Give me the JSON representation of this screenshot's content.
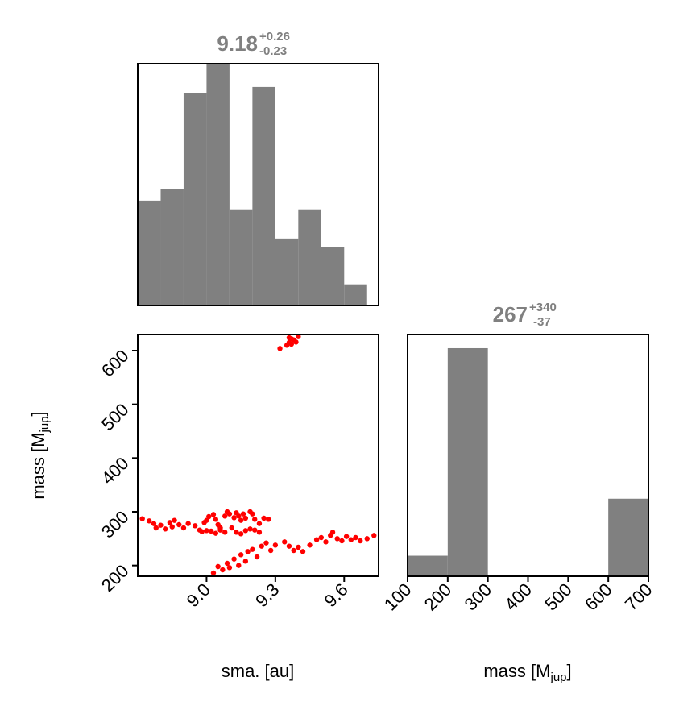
{
  "chart_data": [
    {
      "type": "histogram",
      "panel": "sma-marginal",
      "title": {
        "median": "9.18",
        "plus": "+0.26",
        "minus": "-0.23"
      },
      "color": "#808080",
      "xlim": [
        8.7,
        9.75
      ],
      "bins": [
        {
          "x0": 8.7,
          "x1": 8.8,
          "count": 36
        },
        {
          "x0": 8.8,
          "x1": 8.9,
          "count": 40
        },
        {
          "x0": 8.9,
          "x1": 9.0,
          "count": 73
        },
        {
          "x0": 9.0,
          "x1": 9.1,
          "count": 83
        },
        {
          "x0": 9.1,
          "x1": 9.2,
          "count": 33
        },
        {
          "x0": 9.2,
          "x1": 9.3,
          "count": 75
        },
        {
          "x0": 9.3,
          "x1": 9.4,
          "count": 23
        },
        {
          "x0": 9.4,
          "x1": 9.5,
          "count": 33
        },
        {
          "x0": 9.5,
          "x1": 9.6,
          "count": 20
        },
        {
          "x0": 9.6,
          "x1": 9.7,
          "count": 7
        }
      ],
      "ylim": [
        0,
        83
      ]
    },
    {
      "type": "scatter",
      "panel": "sma-mass-joint",
      "color": "#ff0000",
      "xlabel": "sma. [au]",
      "ylabel": {
        "base": "mass [M",
        "sub": "jup",
        "close": "]"
      },
      "xlim": [
        8.7,
        9.75
      ],
      "ylim": [
        180,
        630
      ],
      "xticks": [
        9.0,
        9.3,
        9.6
      ],
      "xtick_labels": [
        "9.0",
        "9.3",
        "9.6"
      ],
      "yticks": [
        200,
        300,
        400,
        500,
        600
      ],
      "ytick_labels": [
        "200",
        "300",
        "400",
        "500",
        "600"
      ],
      "points": [
        [
          9.32,
          604
        ],
        [
          9.35,
          610
        ],
        [
          9.36,
          615
        ],
        [
          9.37,
          612
        ],
        [
          9.38,
          620
        ],
        [
          9.39,
          616
        ],
        [
          9.36,
          624
        ],
        [
          9.4,
          626
        ],
        [
          9.37,
          622
        ],
        [
          8.72,
          287
        ],
        [
          8.75,
          283
        ],
        [
          8.77,
          278
        ],
        [
          8.78,
          270
        ],
        [
          8.8,
          275
        ],
        [
          8.82,
          268
        ],
        [
          8.84,
          280
        ],
        [
          8.85,
          272
        ],
        [
          8.86,
          284
        ],
        [
          8.88,
          276
        ],
        [
          8.9,
          270
        ],
        [
          8.92,
          278
        ],
        [
          8.95,
          274
        ],
        [
          8.97,
          266
        ],
        [
          8.99,
          280
        ],
        [
          9.0,
          284
        ],
        [
          9.01,
          291
        ],
        [
          9.03,
          295
        ],
        [
          9.04,
          286
        ],
        [
          9.05,
          276
        ],
        [
          9.06,
          270
        ],
        [
          9.08,
          292
        ],
        [
          9.09,
          300
        ],
        [
          9.1,
          296
        ],
        [
          9.12,
          289
        ],
        [
          9.13,
          298
        ],
        [
          9.14,
          292
        ],
        [
          9.15,
          284
        ],
        [
          9.16,
          296
        ],
        [
          9.17,
          288
        ],
        [
          9.19,
          300
        ],
        [
          9.2,
          296
        ],
        [
          9.21,
          286
        ],
        [
          9.23,
          278
        ],
        [
          9.25,
          288
        ],
        [
          9.27,
          286
        ],
        [
          8.98,
          263
        ],
        [
          9.0,
          265
        ],
        [
          9.02,
          264
        ],
        [
          9.04,
          260
        ],
        [
          9.06,
          266
        ],
        [
          9.08,
          262
        ],
        [
          9.11,
          270
        ],
        [
          9.13,
          262
        ],
        [
          9.15,
          259
        ],
        [
          9.17,
          265
        ],
        [
          9.19,
          268
        ],
        [
          9.21,
          266
        ],
        [
          9.23,
          262
        ],
        [
          9.03,
          186
        ],
        [
          9.05,
          198
        ],
        [
          9.07,
          192
        ],
        [
          9.09,
          204
        ],
        [
          9.1,
          196
        ],
        [
          9.12,
          212
        ],
        [
          9.14,
          200
        ],
        [
          9.15,
          220
        ],
        [
          9.17,
          208
        ],
        [
          9.18,
          226
        ],
        [
          9.2,
          230
        ],
        [
          9.22,
          216
        ],
        [
          9.24,
          236
        ],
        [
          9.26,
          242
        ],
        [
          9.28,
          228
        ],
        [
          9.3,
          238
        ],
        [
          9.34,
          244
        ],
        [
          9.36,
          236
        ],
        [
          9.38,
          228
        ],
        [
          9.4,
          234
        ],
        [
          9.42,
          226
        ],
        [
          9.45,
          238
        ],
        [
          9.48,
          248
        ],
        [
          9.5,
          252
        ],
        [
          9.52,
          244
        ],
        [
          9.54,
          256
        ],
        [
          9.55,
          262
        ],
        [
          9.57,
          250
        ],
        [
          9.59,
          246
        ],
        [
          9.61,
          254
        ],
        [
          9.63,
          248
        ],
        [
          9.65,
          252
        ],
        [
          9.67,
          246
        ],
        [
          9.7,
          250
        ],
        [
          9.73,
          256
        ]
      ]
    },
    {
      "type": "histogram",
      "panel": "mass-marginal",
      "title": {
        "median": "267",
        "plus": "+340",
        "minus": "-37"
      },
      "color": "#808080",
      "xlabel": {
        "base": "mass [M",
        "sub": "jup",
        "close": "]"
      },
      "xlim": [
        100,
        700
      ],
      "xticks": [
        100,
        200,
        300,
        400,
        500,
        600,
        700
      ],
      "xtick_labels": [
        "100",
        "200",
        "300",
        "400",
        "500",
        "600",
        "700"
      ],
      "bins": [
        {
          "x0": 100,
          "x1": 200,
          "count": 9
        },
        {
          "x0": 200,
          "x1": 300,
          "count": 100
        },
        {
          "x0": 300,
          "x1": 400,
          "count": 0.6
        },
        {
          "x0": 400,
          "x1": 500,
          "count": 0
        },
        {
          "x0": 500,
          "x1": 600,
          "count": 0
        },
        {
          "x0": 600,
          "x1": 700,
          "count": 34
        }
      ],
      "ylim": [
        0,
        106
      ]
    }
  ]
}
